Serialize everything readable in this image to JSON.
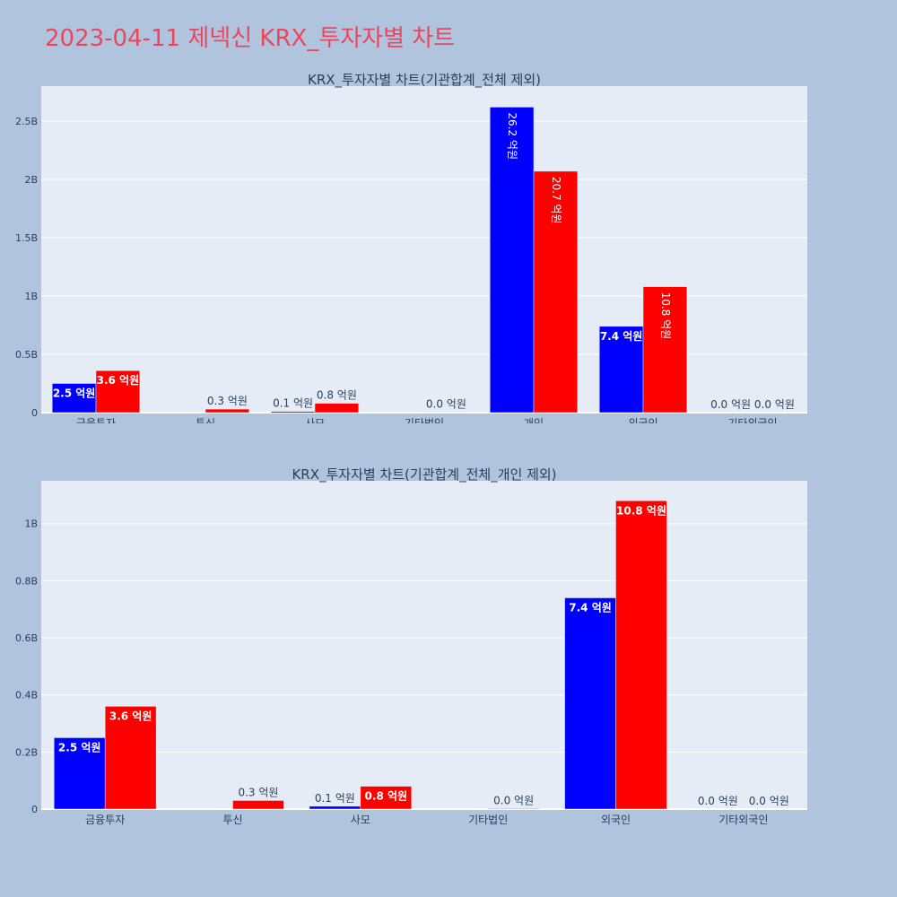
{
  "page_title": "2023-04-11 제넥신 KRX_투자자별 차트",
  "colors": {
    "buy": "#0000ff",
    "sell": "#ff0000",
    "plot_bg": "#e5ecf6",
    "page_bg": "#b0c4de",
    "title": "#e8475f"
  },
  "chart_data": [
    {
      "type": "bar",
      "title": "KRX_투자자별 차트(기관합계_전체 제외)",
      "categories": [
        "금융투자",
        "투신",
        "사모",
        "기타법인",
        "개인",
        "외국인",
        "기타외국인"
      ],
      "series": [
        {
          "values": [
            250000000,
            0,
            10000000,
            0,
            2620000000,
            740000000,
            0
          ],
          "labels": [
            "2.5 억원",
            "",
            "0.1 억원",
            "",
            "26.2 억원",
            "7.4 억원",
            "0.0 억원"
          ]
        },
        {
          "values": [
            360000000,
            30000000,
            80000000,
            2000000,
            2070000000,
            1080000000,
            0
          ],
          "labels": [
            "3.6 억원",
            "0.3 억원",
            "0.8 억원",
            "0.0 억원",
            "20.7 억원",
            "10.8 억원",
            "0.0 억원"
          ]
        }
      ],
      "yticks": [
        0,
        500000000,
        1000000000,
        1500000000,
        2000000000,
        2500000000
      ],
      "ytick_labels": [
        "0",
        "0.5B",
        "1B",
        "1.5B",
        "2B",
        "2.5B"
      ],
      "ylim": [
        0,
        2800000000
      ],
      "grid": true
    },
    {
      "type": "bar",
      "title": "KRX_투자자별 차트(기관합계_전체_개인 제외)",
      "categories": [
        "금융투자",
        "투신",
        "사모",
        "기타법인",
        "외국인",
        "기타외국인"
      ],
      "series": [
        {
          "values": [
            250000000,
            0,
            10000000,
            0,
            740000000,
            0
          ],
          "labels": [
            "2.5 억원",
            "",
            "0.1 억원",
            "",
            "7.4 억원",
            "0.0 억원"
          ]
        },
        {
          "values": [
            360000000,
            30000000,
            80000000,
            2000000,
            1080000000,
            0
          ],
          "labels": [
            "3.6 억원",
            "0.3 억원",
            "0.8 억원",
            "0.0 억원",
            "10.8 억원",
            "0.0 억원"
          ]
        }
      ],
      "yticks": [
        0,
        200000000,
        400000000,
        600000000,
        800000000,
        1000000000
      ],
      "ytick_labels": [
        "0",
        "0.2B",
        "0.4B",
        "0.6B",
        "0.8B",
        "1B"
      ],
      "ylim": [
        0,
        1150000000
      ],
      "grid": true
    }
  ]
}
